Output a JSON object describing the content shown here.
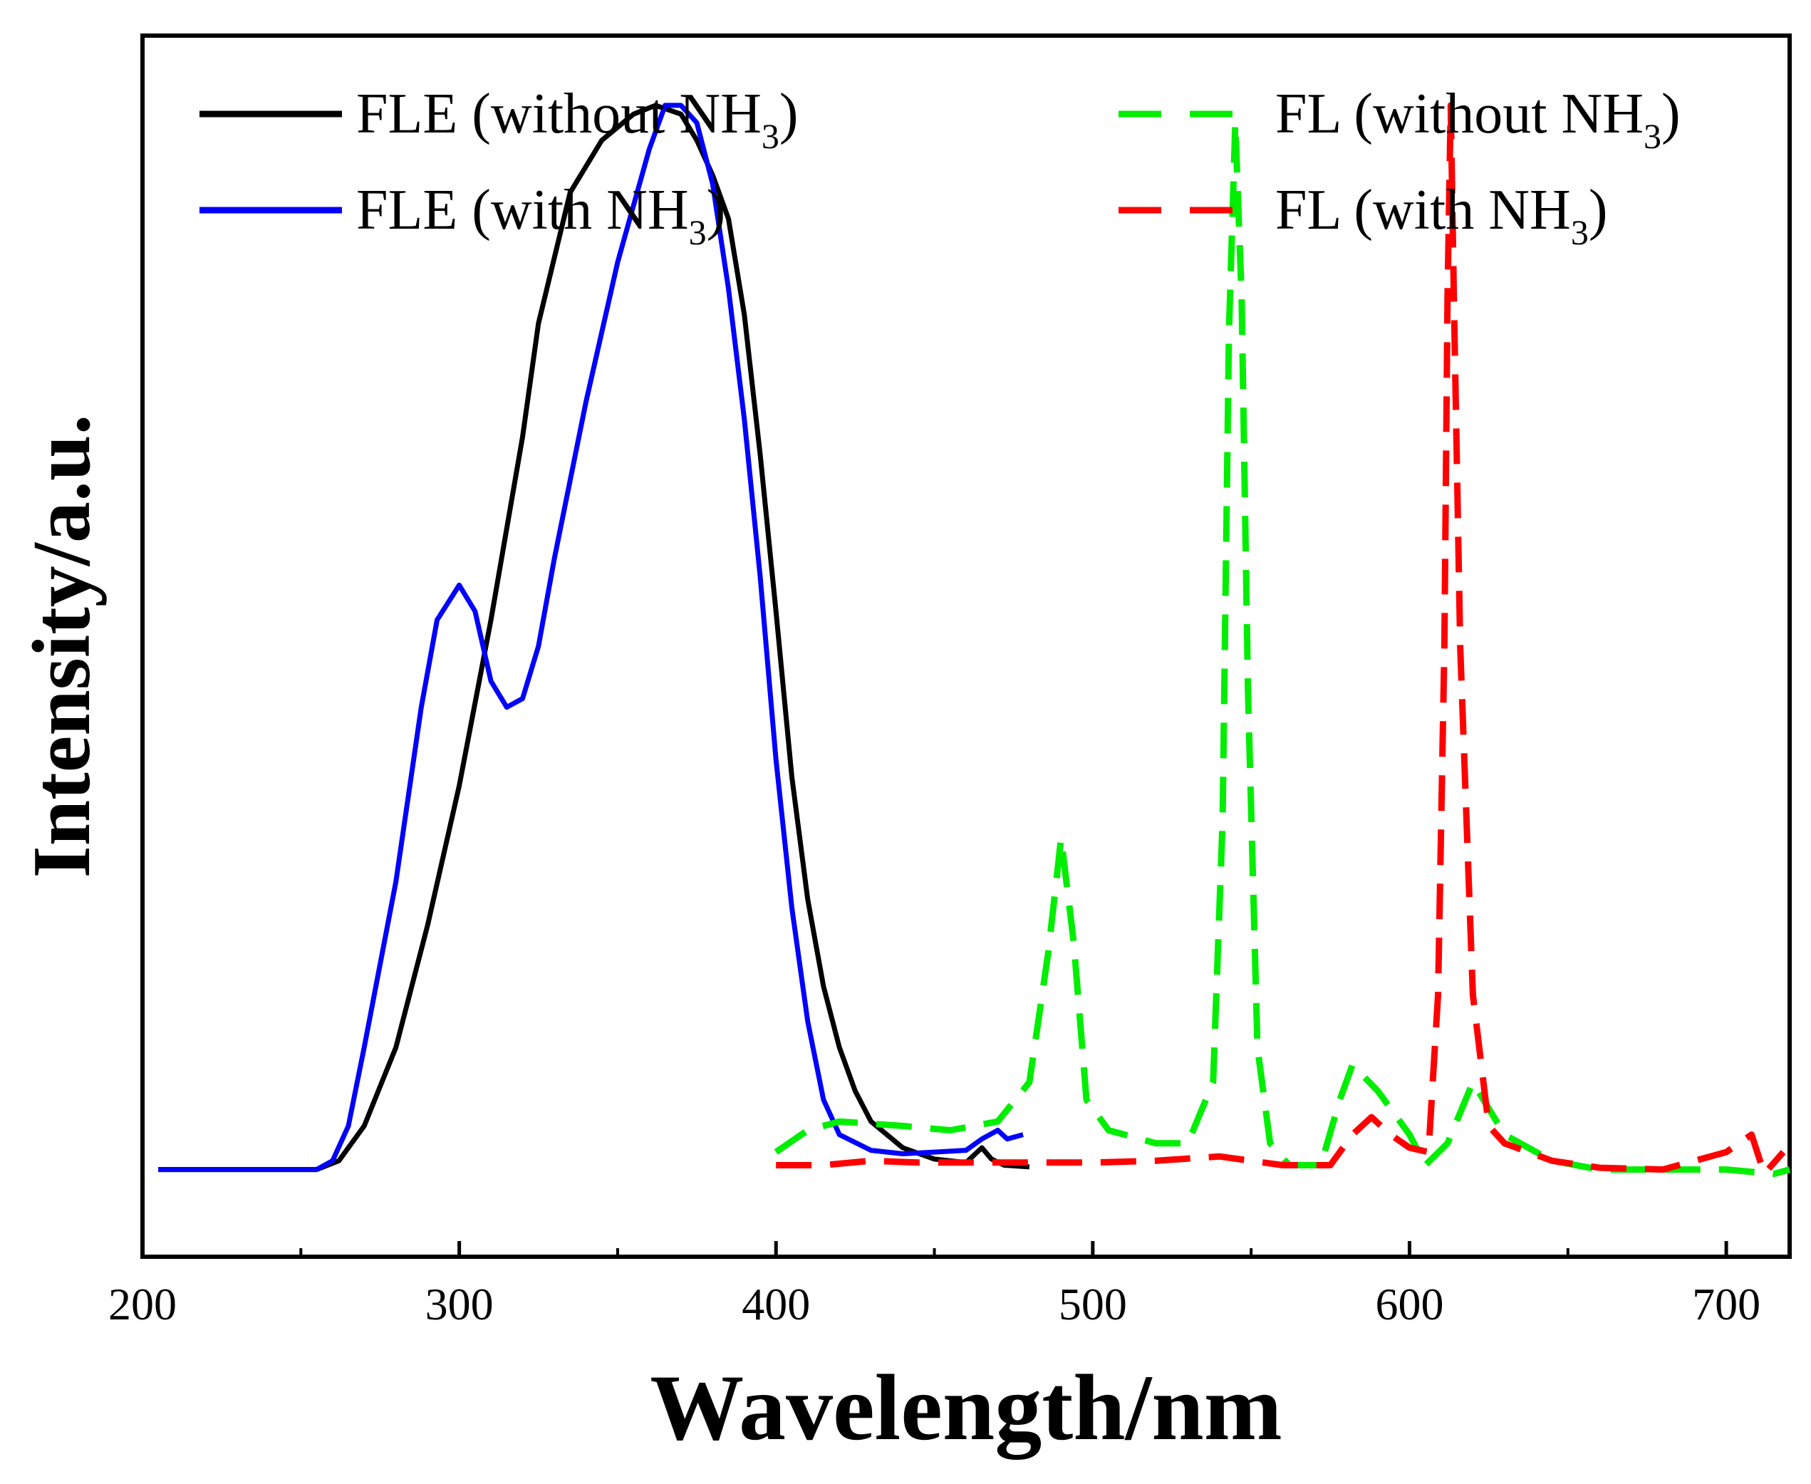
{
  "chart_data": {
    "type": "line",
    "title": "",
    "xlabel": "Wavelength/nm",
    "ylabel": "Intensity/a.u.",
    "xlim": [
      200,
      720
    ],
    "ylim": [
      -0.1,
      1.3
    ],
    "x_ticks": [
      200,
      300,
      400,
      500,
      600,
      700
    ],
    "y_ticks_labeled": false,
    "grid": false,
    "legend_position": "top",
    "series": [
      {
        "name": "FLE (without NH",
        "sub": "3",
        "suffix": ")",
        "color": "#000000",
        "dash": "solid",
        "points": [
          [
            205,
            0
          ],
          [
            240,
            0
          ],
          [
            255,
            0
          ],
          [
            262,
            0.01
          ],
          [
            270,
            0.05
          ],
          [
            280,
            0.14
          ],
          [
            290,
            0.28
          ],
          [
            300,
            0.44
          ],
          [
            310,
            0.63
          ],
          [
            320,
            0.84
          ],
          [
            325,
            0.97
          ],
          [
            335,
            1.12
          ],
          [
            345,
            1.18
          ],
          [
            355,
            1.21
          ],
          [
            362,
            1.22
          ],
          [
            370,
            1.21
          ],
          [
            375,
            1.18
          ],
          [
            380,
            1.14
          ],
          [
            385,
            1.09
          ],
          [
            390,
            0.98
          ],
          [
            395,
            0.82
          ],
          [
            400,
            0.64
          ],
          [
            405,
            0.45
          ],
          [
            410,
            0.31
          ],
          [
            415,
            0.21
          ],
          [
            420,
            0.14
          ],
          [
            425,
            0.09
          ],
          [
            430,
            0.055
          ],
          [
            440,
            0.025
          ],
          [
            450,
            0.012
          ],
          [
            460,
            0.008
          ],
          [
            465,
            0.025
          ],
          [
            468,
            0.012
          ],
          [
            472,
            0.005
          ],
          [
            480,
            0.003
          ]
        ]
      },
      {
        "name": "FLE (with NH",
        "sub": "3",
        "suffix": ")",
        "color": "#0000ff",
        "dash": "solid",
        "points": [
          [
            205,
            0
          ],
          [
            240,
            0
          ],
          [
            255,
            0
          ],
          [
            260,
            0.01
          ],
          [
            265,
            0.05
          ],
          [
            270,
            0.14
          ],
          [
            280,
            0.33
          ],
          [
            288,
            0.53
          ],
          [
            293,
            0.63
          ],
          [
            300,
            0.67
          ],
          [
            305,
            0.64
          ],
          [
            310,
            0.56
          ],
          [
            315,
            0.53
          ],
          [
            320,
            0.54
          ],
          [
            325,
            0.6
          ],
          [
            330,
            0.7
          ],
          [
            340,
            0.88
          ],
          [
            350,
            1.04
          ],
          [
            360,
            1.17
          ],
          [
            365,
            1.22
          ],
          [
            370,
            1.22
          ],
          [
            375,
            1.2
          ],
          [
            380,
            1.13
          ],
          [
            385,
            1.01
          ],
          [
            390,
            0.86
          ],
          [
            395,
            0.68
          ],
          [
            400,
            0.47
          ],
          [
            405,
            0.3
          ],
          [
            410,
            0.17
          ],
          [
            415,
            0.08
          ],
          [
            420,
            0.04
          ],
          [
            430,
            0.022
          ],
          [
            440,
            0.018
          ],
          [
            450,
            0.02
          ],
          [
            460,
            0.022
          ],
          [
            465,
            0.035
          ],
          [
            470,
            0.045
          ],
          [
            473,
            0.035
          ],
          [
            478,
            0.04
          ]
        ]
      },
      {
        "name": "FL (without NH",
        "sub": "3",
        "suffix": ")",
        "color": "#00ee00",
        "dash": "dashed",
        "points": [
          [
            400,
            0.02
          ],
          [
            410,
            0.045
          ],
          [
            420,
            0.055
          ],
          [
            440,
            0.05
          ],
          [
            455,
            0.045
          ],
          [
            470,
            0.055
          ],
          [
            480,
            0.1
          ],
          [
            486,
            0.25
          ],
          [
            490,
            0.38
          ],
          [
            494,
            0.26
          ],
          [
            498,
            0.08
          ],
          [
            505,
            0.045
          ],
          [
            520,
            0.03
          ],
          [
            530,
            0.03
          ],
          [
            538,
            0.1
          ],
          [
            541,
            0.4
          ],
          [
            543,
            0.96
          ],
          [
            545,
            1.2
          ],
          [
            547,
            1.0
          ],
          [
            549,
            0.55
          ],
          [
            552,
            0.14
          ],
          [
            556,
            0.03
          ],
          [
            562,
            0.005
          ],
          [
            572,
            0.005
          ],
          [
            578,
            0.08
          ],
          [
            582,
            0.12
          ],
          [
            590,
            0.09
          ],
          [
            600,
            0.04
          ],
          [
            605,
            0.005
          ],
          [
            612,
            0.03
          ],
          [
            620,
            0.1
          ],
          [
            630,
            0.04
          ],
          [
            645,
            0.01
          ],
          [
            660,
            0
          ],
          [
            690,
            0
          ],
          [
            700,
            0
          ],
          [
            715,
            -0.005
          ],
          [
            720,
            0
          ]
        ]
      },
      {
        "name": "FL (with NH",
        "sub": "3",
        "suffix": ")",
        "color": "#ff0000",
        "dash": "dashed",
        "points": [
          [
            400,
            0.005
          ],
          [
            415,
            0.005
          ],
          [
            430,
            0.01
          ],
          [
            445,
            0.008
          ],
          [
            460,
            0.008
          ],
          [
            480,
            0.008
          ],
          [
            500,
            0.008
          ],
          [
            520,
            0.01
          ],
          [
            540,
            0.015
          ],
          [
            560,
            0.005
          ],
          [
            575,
            0.005
          ],
          [
            582,
            0.04
          ],
          [
            588,
            0.06
          ],
          [
            594,
            0.04
          ],
          [
            600,
            0.025
          ],
          [
            606,
            0.02
          ],
          [
            609,
            0.2
          ],
          [
            611,
            0.6
          ],
          [
            612,
            1.0
          ],
          [
            613,
            1.22
          ],
          [
            614,
            1.0
          ],
          [
            616,
            0.6
          ],
          [
            620,
            0.2
          ],
          [
            625,
            0.05
          ],
          [
            630,
            0.03
          ],
          [
            645,
            0.01
          ],
          [
            660,
            0.002
          ],
          [
            680,
            0
          ],
          [
            700,
            0.02
          ],
          [
            708,
            0.04
          ],
          [
            712,
            -0.005
          ],
          [
            718,
            0.02
          ]
        ]
      }
    ]
  }
}
